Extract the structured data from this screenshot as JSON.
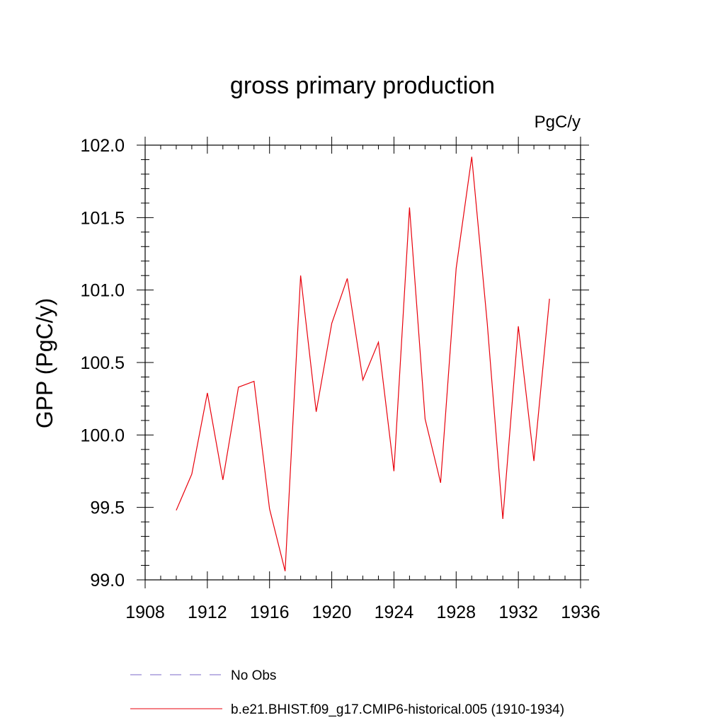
{
  "chart_data": {
    "type": "line",
    "title": "gross primary production",
    "units": "PgC/y",
    "ylabel": "GPP  (PgC/y)",
    "xlabel": "",
    "xlim": [
      1908,
      1936
    ],
    "ylim": [
      99.0,
      102.0
    ],
    "x_ticks": [
      1908,
      1912,
      1916,
      1920,
      1924,
      1928,
      1932,
      1936
    ],
    "x_tick_labels": [
      "1908",
      "1912",
      "1916",
      "1920",
      "1924",
      "1928",
      "1932",
      "1936"
    ],
    "y_ticks": [
      99.0,
      99.5,
      100.0,
      100.5,
      101.0,
      101.5,
      102.0
    ],
    "y_tick_labels": [
      "99.0",
      "99.5",
      "100.0",
      "100.5",
      "101.0",
      "101.5",
      "102.0"
    ],
    "grid": false,
    "legend_position": "bottom",
    "series": [
      {
        "name": "b.e21.BHIST.f09_g17.CMIP6-historical.005 (1910-1934)",
        "color": "#e8000b",
        "style": "solid",
        "x": [
          1910,
          1911,
          1912,
          1913,
          1914,
          1915,
          1916,
          1917,
          1918,
          1919,
          1920,
          1921,
          1922,
          1923,
          1924,
          1925,
          1926,
          1927,
          1928,
          1929,
          1930,
          1931,
          1932,
          1933,
          1934
        ],
        "values": [
          99.48,
          99.73,
          100.29,
          99.69,
          100.33,
          100.37,
          99.49,
          99.06,
          101.1,
          100.16,
          100.77,
          101.08,
          100.38,
          100.64,
          99.75,
          101.57,
          100.11,
          99.67,
          101.15,
          101.92,
          100.77,
          99.42,
          100.75,
          99.82,
          100.94
        ]
      }
    ],
    "legend": [
      {
        "label": "No Obs",
        "color": "#7b68c8",
        "style": "dashed"
      },
      {
        "label": "b.e21.BHIST.f09_g17.CMIP6-historical.005 (1910-1934)",
        "color": "#e8000b",
        "style": "solid"
      }
    ]
  }
}
